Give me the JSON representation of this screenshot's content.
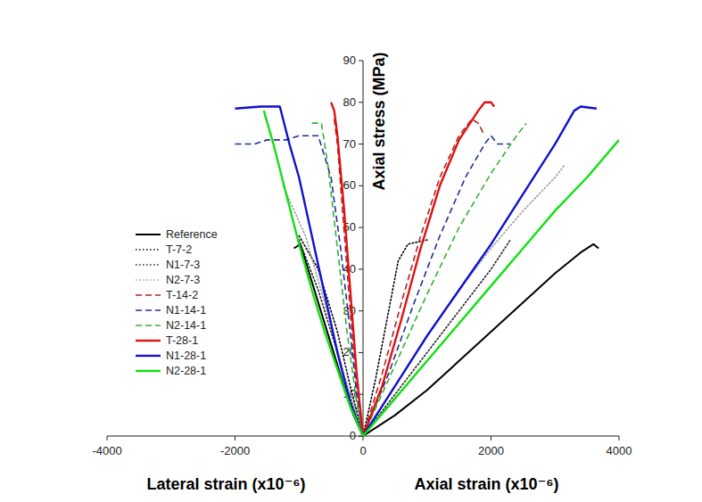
{
  "chart_data": {
    "type": "line",
    "ylabel": "Axial stress (MPa)",
    "xlabel_left": "Lateral strain (x10⁻⁶)",
    "xlabel_right": "Axial strain (x10⁻⁶)",
    "xlim": [
      -4000,
      4000
    ],
    "xticks": [
      -4000,
      -2000,
      0,
      2000,
      4000
    ],
    "ylim": [
      0,
      90
    ],
    "yticks": [
      0,
      10,
      20,
      30,
      40,
      50,
      60,
      70,
      80,
      90
    ],
    "grid": false,
    "legend": "center left",
    "series": [
      {
        "name": "Reference",
        "color": "#000000",
        "line_style": "solid",
        "x": [
          -1080,
          -980,
          -900,
          -700,
          -500,
          -300,
          -150,
          0,
          500,
          1000,
          1500,
          2000,
          2500,
          3000,
          3400,
          3600,
          3680
        ],
        "values": [
          45,
          46,
          42,
          32,
          22,
          12,
          5,
          0,
          5,
          11,
          18,
          25,
          32,
          39,
          44,
          46,
          45
        ]
      },
      {
        "name": "T-7-2",
        "color": "#000000",
        "line_style": "dotted",
        "x": [
          -1000,
          -700,
          -400,
          -200,
          0,
          200,
          400,
          550,
          700,
          1000
        ],
        "values": [
          48,
          40,
          25,
          12,
          0,
          14,
          30,
          42,
          46,
          47
        ]
      },
      {
        "name": "N1-7-3",
        "color": "#222222",
        "line_style": "dotted",
        "x": [
          -1000,
          -700,
          -400,
          -200,
          0,
          500,
          1000,
          1500,
          2000,
          2300
        ],
        "values": [
          47,
          35,
          20,
          9,
          0,
          10,
          20,
          30,
          40,
          47
        ]
      },
      {
        "name": "N2-7-3",
        "color": "#a0a0a0",
        "line_style": "dotted",
        "x": [
          -1250,
          -900,
          -600,
          -300,
          0,
          500,
          1000,
          1500,
          2000,
          2500,
          3000,
          3150
        ],
        "values": [
          60,
          48,
          32,
          15,
          0,
          12,
          24,
          35,
          45,
          54,
          62,
          65
        ]
      },
      {
        "name": "T-14-2",
        "color": "#b22222",
        "line_style": "dashed",
        "x": [
          -450,
          -400,
          -300,
          -200,
          -100,
          0,
          300,
          600,
          900,
          1200,
          1500,
          1700,
          1800,
          1900
        ],
        "values": [
          76,
          70,
          50,
          30,
          12,
          0,
          15,
          32,
          48,
          62,
          72,
          76,
          75,
          72
        ]
      },
      {
        "name": "N1-14-1",
        "color": "#1f2f9f",
        "line_style": "dashed",
        "x": [
          -2000,
          -1700,
          -1500,
          -1200,
          -1000,
          -700,
          -500,
          -350,
          -200,
          -100,
          0,
          400,
          800,
          1200,
          1600,
          1900,
          2000,
          2100,
          2300
        ],
        "values": [
          70,
          70,
          71,
          71,
          72,
          72,
          62,
          45,
          25,
          10,
          0,
          15,
          32,
          48,
          62,
          70,
          72,
          70,
          70
        ]
      },
      {
        "name": "N2-14-1",
        "color": "#2fb52f",
        "line_style": "dashed",
        "x": [
          -800,
          -650,
          -550,
          -400,
          -250,
          -100,
          0,
          500,
          1000,
          1500,
          2000,
          2400,
          2550
        ],
        "values": [
          75,
          75,
          65,
          45,
          25,
          8,
          0,
          17,
          34,
          50,
          63,
          72,
          75
        ]
      },
      {
        "name": "T-28-1",
        "color": "#e01010",
        "line_style": "solid",
        "x": [
          -500,
          -450,
          -400,
          -300,
          -200,
          -100,
          0,
          300,
          600,
          900,
          1200,
          1500,
          1800,
          1900,
          2000,
          2050
        ],
        "values": [
          80,
          78,
          72,
          55,
          35,
          15,
          0,
          12,
          28,
          45,
          60,
          71,
          78,
          80,
          80,
          79
        ]
      },
      {
        "name": "N1-28-1",
        "color": "#1010d0",
        "line_style": "solid",
        "x": [
          -2000,
          -1600,
          -1300,
          -1150,
          -1000,
          -800,
          -600,
          -400,
          -200,
          0,
          500,
          1000,
          1500,
          2000,
          2500,
          3000,
          3300,
          3400,
          3650
        ],
        "values": [
          78.5,
          79,
          79,
          70,
          62,
          48,
          34,
          20,
          8,
          0,
          12,
          24,
          35,
          46,
          58,
          70,
          78,
          79,
          78.5
        ]
      },
      {
        "name": "N2-28-1",
        "color": "#10e010",
        "line_style": "solid",
        "x": [
          -1550,
          -1400,
          -1200,
          -1000,
          -800,
          -600,
          -400,
          -200,
          0,
          500,
          1000,
          1500,
          2000,
          2500,
          3000,
          3500,
          4000
        ],
        "values": [
          78,
          70,
          58,
          46,
          35,
          25,
          16,
          7,
          0,
          9,
          18,
          27,
          36,
          45,
          54,
          62,
          71
        ]
      }
    ]
  }
}
